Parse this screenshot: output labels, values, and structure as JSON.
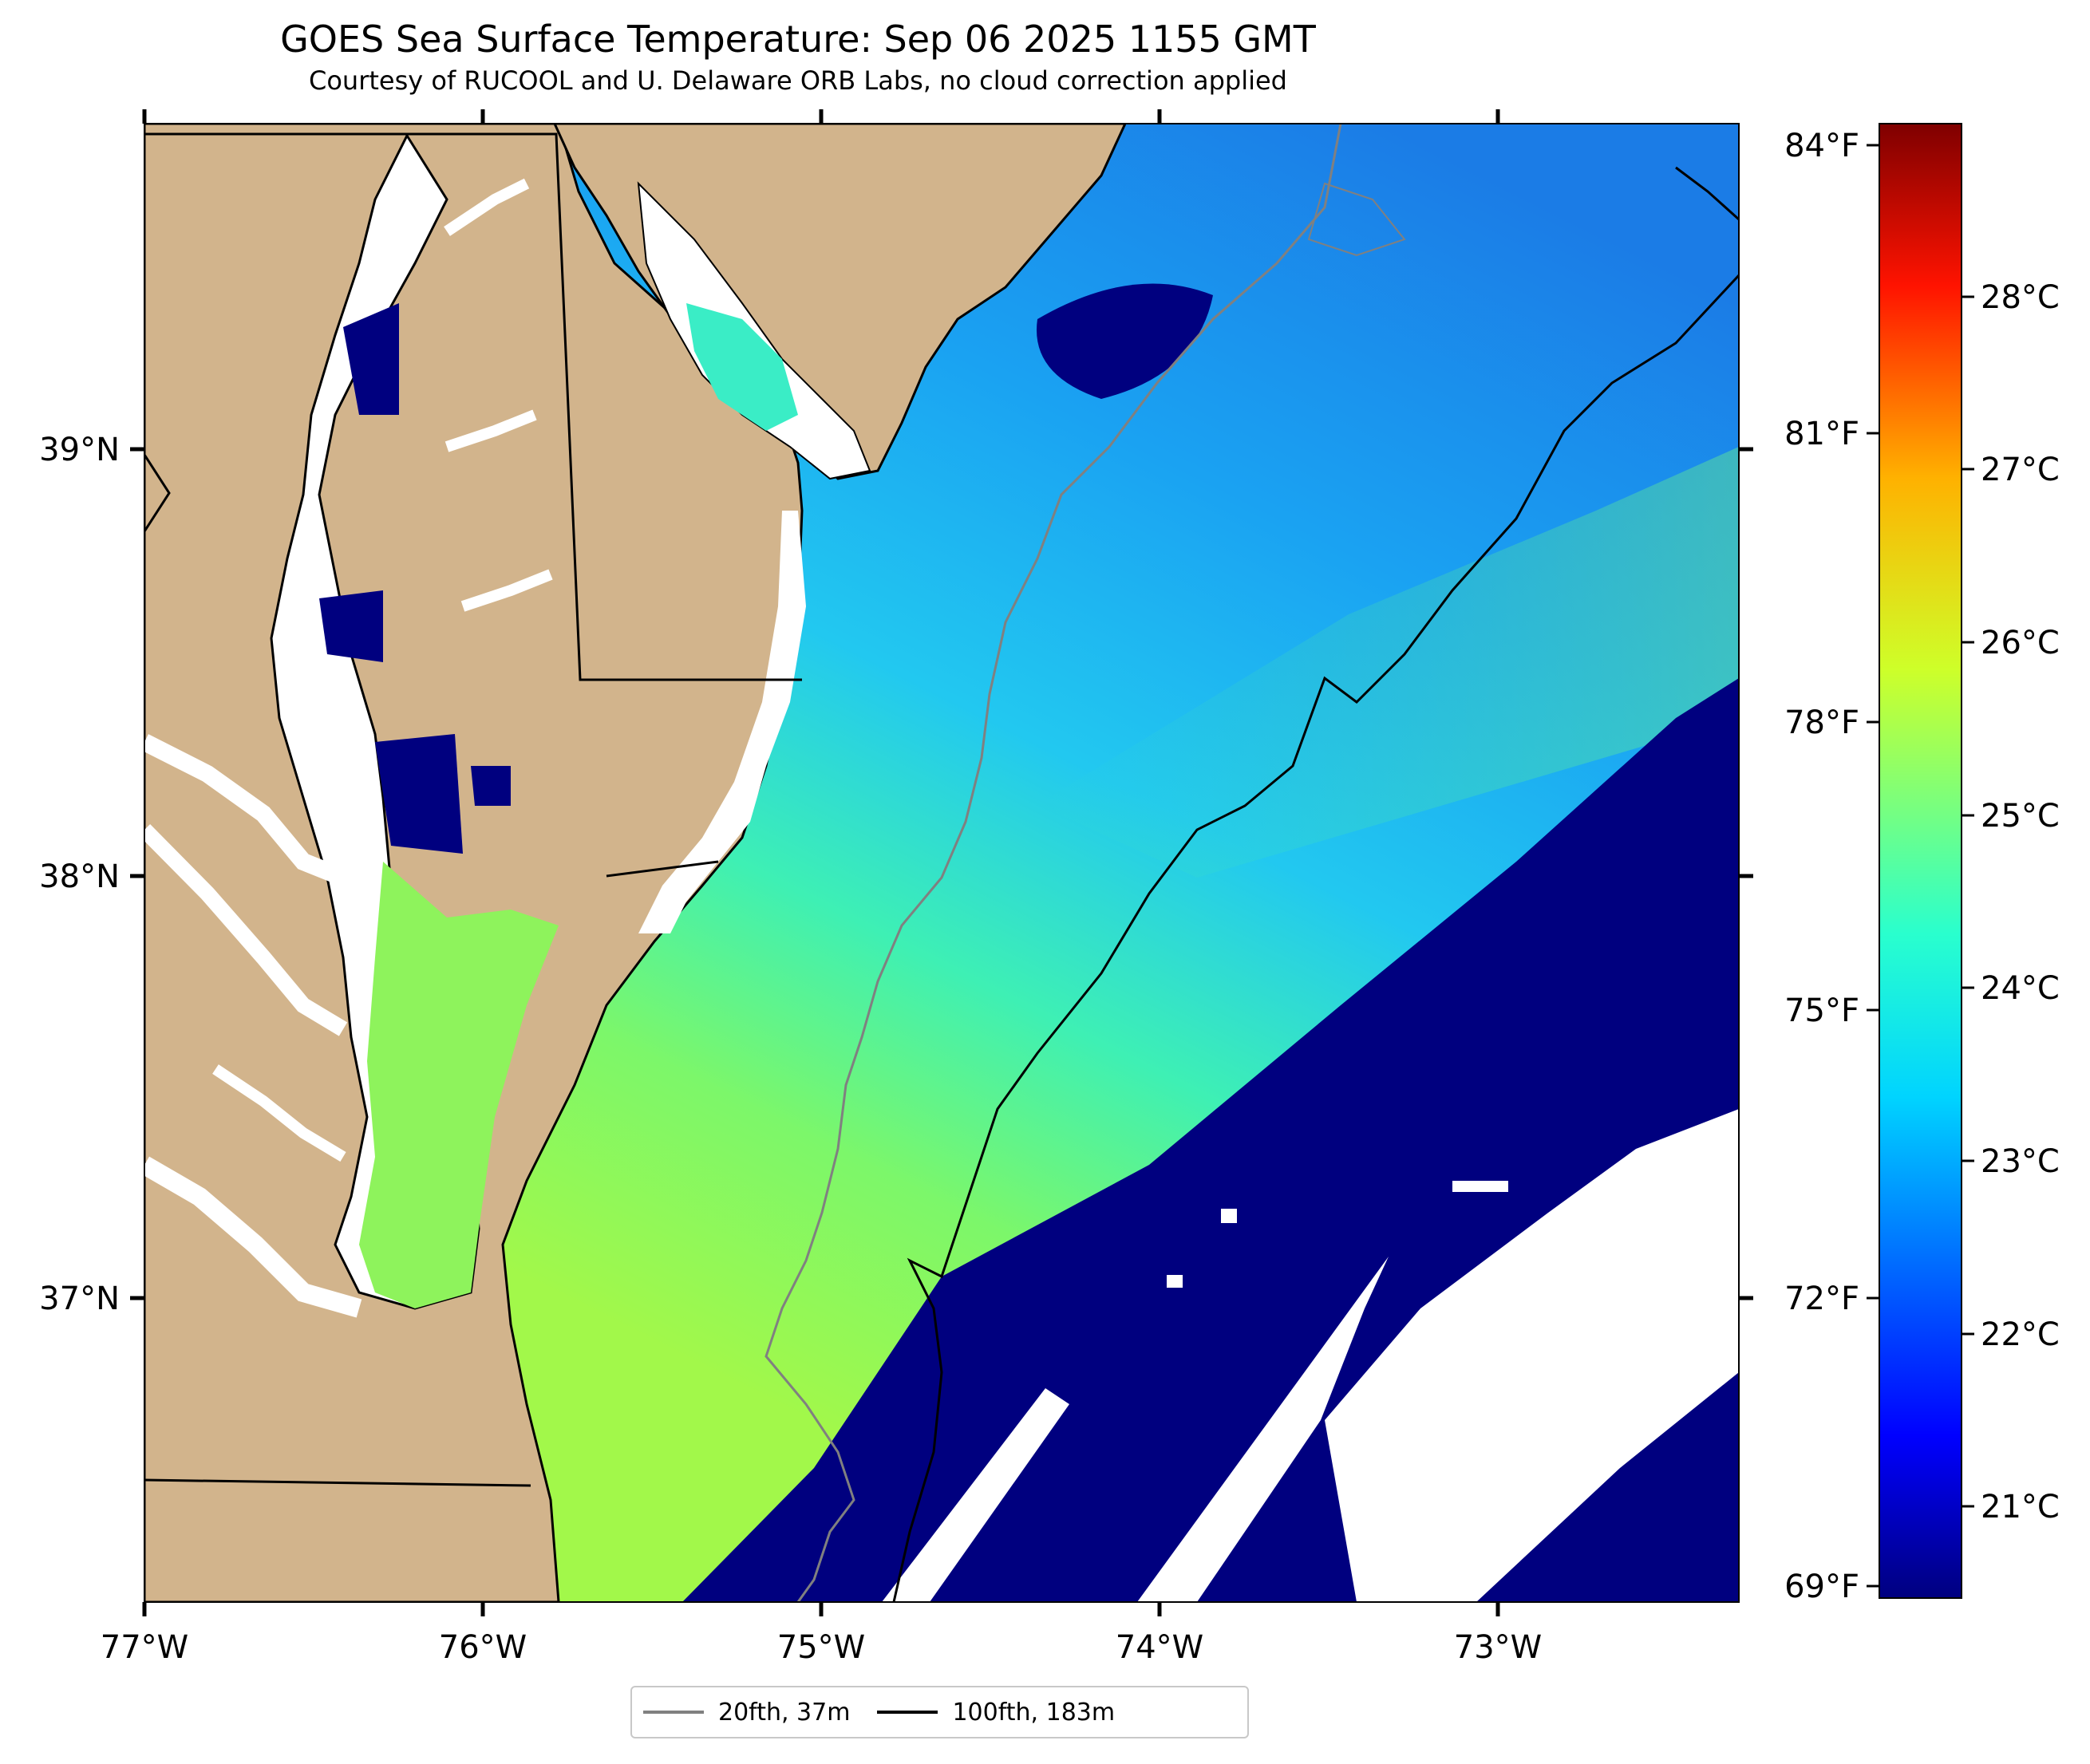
{
  "title": "GOES Sea Surface Temperature: Sep 06 2025 1155 GMT",
  "subtitle": "Courtesy of RUCOOL and U. Delaware ORB Labs, no cloud correction applied",
  "map": {
    "lon_range": [
      -77.0,
      -72.25
    ],
    "lat_range": [
      36.27,
      39.77
    ],
    "lon_ticks": [
      "77°W",
      "76°W",
      "75°W",
      "74°W",
      "73°W"
    ],
    "lat_ticks": [
      "39°N",
      "38°N",
      "37°N"
    ],
    "colors": {
      "land": "#d2b48c",
      "no_data": "#ffffff",
      "coast": "#000000",
      "isobath_20fth": "#808080",
      "isobath_100fth": "#000000",
      "cold_band": "#00007f"
    }
  },
  "colorbar": {
    "colormap": "jet",
    "range_c": [
      20.5,
      29.0
    ],
    "celsius_ticks": [
      "21°C",
      "22°C",
      "23°C",
      "24°C",
      "25°C",
      "26°C",
      "27°C",
      "28°C"
    ],
    "fahrenheit_ticks": [
      "69°F",
      "72°F",
      "75°F",
      "78°F",
      "81°F",
      "84°F"
    ]
  },
  "legend": {
    "items": [
      {
        "label": "20fth, 37m",
        "color": "#808080"
      },
      {
        "label": "100fth, 183m",
        "color": "#000000"
      }
    ]
  }
}
